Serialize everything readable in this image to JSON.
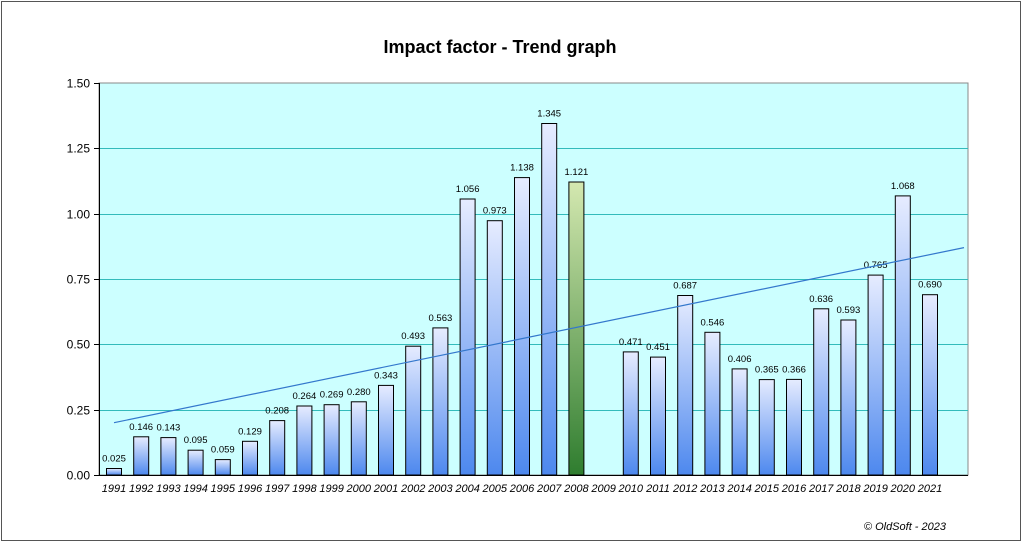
{
  "chart_data": {
    "type": "bar",
    "title": "Impact factor - Trend graph",
    "categories": [
      "1991",
      "1992",
      "1993",
      "1994",
      "1995",
      "1996",
      "1997",
      "1998",
      "1999",
      "2000",
      "2001",
      "2002",
      "2003",
      "2004",
      "2005",
      "2006",
      "2007",
      "2008",
      "2009",
      "2010",
      "2011",
      "2012",
      "2013",
      "2014",
      "2015",
      "2016",
      "2017",
      "2018",
      "2019",
      "2020",
      "2021"
    ],
    "values": [
      0.025,
      0.146,
      0.143,
      0.095,
      0.059,
      0.129,
      0.208,
      0.264,
      0.269,
      0.28,
      0.343,
      0.493,
      0.563,
      1.056,
      0.973,
      1.138,
      1.345,
      1.121,
      null,
      0.471,
      0.451,
      0.687,
      0.546,
      0.406,
      0.365,
      0.366,
      0.636,
      0.593,
      0.765,
      1.068,
      0.69
    ],
    "data_labels": [
      "0.025",
      "0.146",
      "0.143",
      "0.095",
      "0.059",
      "0.129",
      "0.208",
      "0.264",
      "0.269",
      "0.280",
      "0.343",
      "0.493",
      "0.563",
      "1.056",
      "0.973",
      "1.138",
      "1.345",
      "1.121",
      "",
      "0.471",
      "0.451",
      "0.687",
      "0.546",
      "0.406",
      "0.365",
      "0.366",
      "0.636",
      "0.593",
      "0.765",
      "1.068",
      "0.690"
    ],
    "highlight_category": "2008",
    "ylim": [
      0,
      1.5
    ],
    "yticks": [
      0,
      0.25,
      0.5,
      0.75,
      1.0,
      1.25,
      1.5
    ],
    "ytick_labels": [
      "0.00",
      "0.25",
      "0.50",
      "0.75",
      "1.00",
      "1.25",
      "1.50"
    ],
    "trendline": {
      "start_value": 0.2,
      "end_value": 0.87
    },
    "grid": true,
    "colors": {
      "plot_background": "#ccffff",
      "gridline": "#33bbbb",
      "bar_top": "#e6ecff",
      "bar_bottom": "#4d88ee",
      "highlight_top": "#d4e8b0",
      "highlight_bottom": "#2f7d2f",
      "trendline": "#3377cc"
    }
  },
  "footer": {
    "copyright": "© OldSoft - 2023"
  }
}
